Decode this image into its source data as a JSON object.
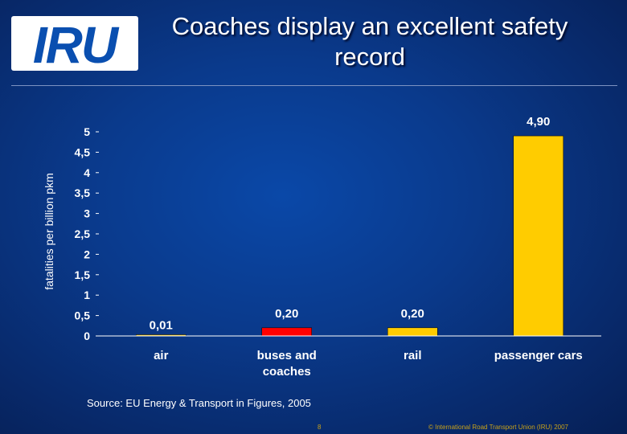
{
  "logo": {
    "text": "IRU"
  },
  "title": "Coaches display an excellent safety record",
  "chart_data": {
    "type": "bar",
    "ylabel": "fatalities per billion pkm",
    "xlabel": "",
    "ylim": [
      0,
      5
    ],
    "y_ticks": [
      "0",
      "0,5",
      "1",
      "1,5",
      "2",
      "2,5",
      "3",
      "3,5",
      "4",
      "4,5",
      "5"
    ],
    "categories": [
      "air",
      "buses and coaches",
      "rail",
      "passenger cars"
    ],
    "category_lines": [
      [
        "air"
      ],
      [
        "buses and",
        "coaches"
      ],
      [
        "rail"
      ],
      [
        "passenger cars"
      ]
    ],
    "values": [
      0.01,
      0.2,
      0.2,
      4.9
    ],
    "value_labels": [
      "0,01",
      "0,20",
      "0,20",
      "4,90"
    ],
    "bar_colors": [
      "#ffcc00",
      "#ff0000",
      "#ffcc00",
      "#ffcc00"
    ],
    "grid": false,
    "legend": "none"
  },
  "footer": {
    "source": "Source: EU Energy & Transport in Figures, 2005",
    "slide_number": "8",
    "copyright": "© International Road Transport Union (IRU) 2007"
  }
}
